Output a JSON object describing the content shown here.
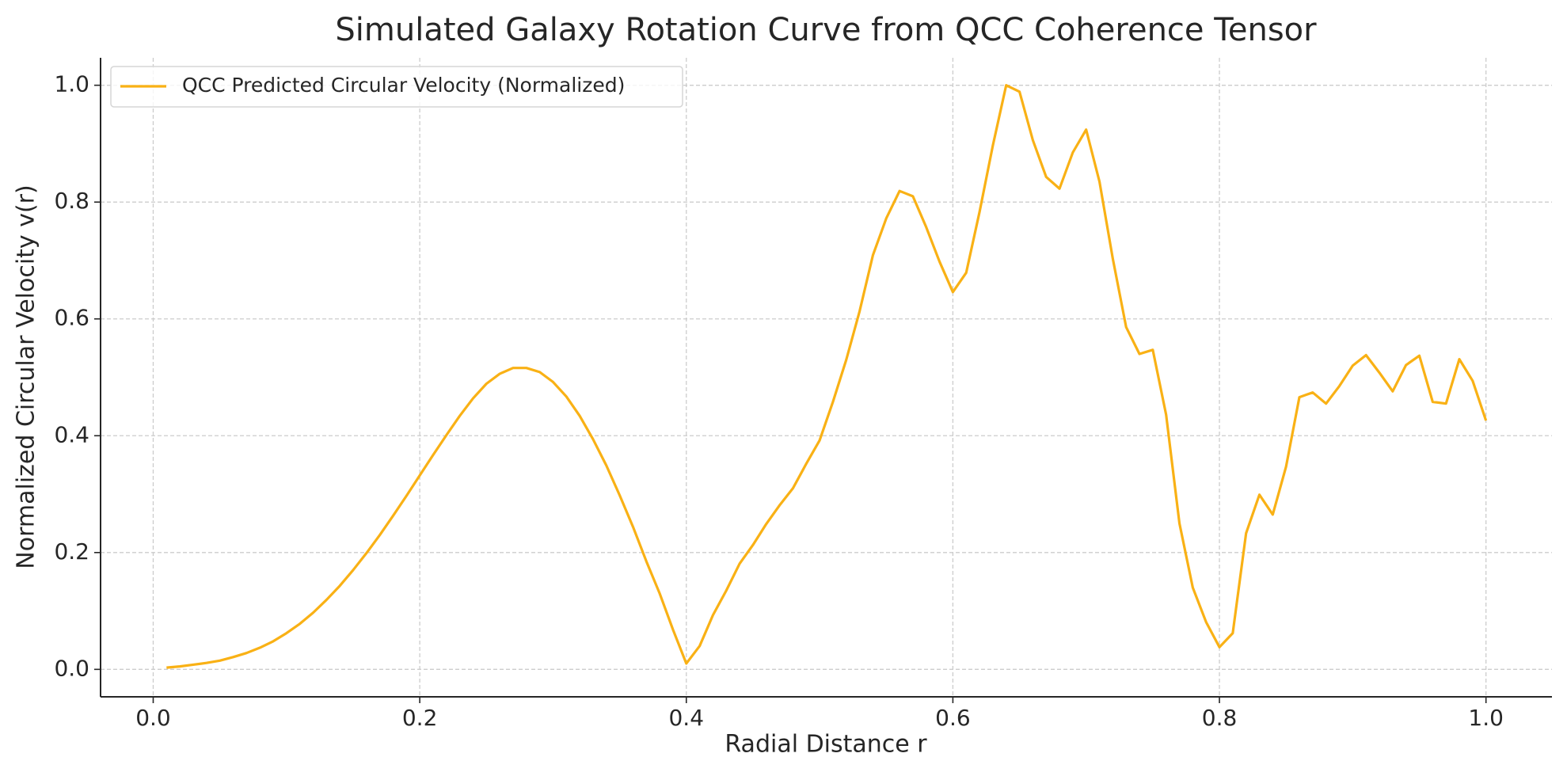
{
  "chart_data": {
    "type": "line",
    "title": "Simulated Galaxy Rotation Curve from QCC Coherence Tensor",
    "xlabel": "Radial Distance r",
    "ylabel": "Normalized Circular Velocity v(r)",
    "x": [
      0.01,
      0.02,
      0.03,
      0.04,
      0.05,
      0.06,
      0.07,
      0.08,
      0.09,
      0.1,
      0.11,
      0.12,
      0.13,
      0.14,
      0.15,
      0.16,
      0.17,
      0.18,
      0.19,
      0.2,
      0.21,
      0.22,
      0.23,
      0.24,
      0.25,
      0.26,
      0.27,
      0.28,
      0.29,
      0.3,
      0.31,
      0.32,
      0.33,
      0.34,
      0.35,
      0.36,
      0.37,
      0.38,
      0.39,
      0.4,
      0.41,
      0.42,
      0.43,
      0.44,
      0.45,
      0.46,
      0.47,
      0.48,
      0.49,
      0.5,
      0.51,
      0.52,
      0.53,
      0.54,
      0.55,
      0.56,
      0.57,
      0.58,
      0.59,
      0.6,
      0.61,
      0.62,
      0.63,
      0.64,
      0.65,
      0.66,
      0.67,
      0.68,
      0.69,
      0.7,
      0.71,
      0.72,
      0.73,
      0.74,
      0.75,
      0.76,
      0.77,
      0.78,
      0.79,
      0.8,
      0.81,
      0.82,
      0.83,
      0.84,
      0.85,
      0.86,
      0.87,
      0.88,
      0.89,
      0.9,
      0.91,
      0.92,
      0.93,
      0.94,
      0.95,
      0.96,
      0.97,
      0.98,
      0.99,
      1.0
    ],
    "series": [
      {
        "name": "QCC Predicted Circular Velocity (Normalized)",
        "color": "#f9b115",
        "values": [
          0.003,
          0.005,
          0.008,
          0.011,
          0.015,
          0.021,
          0.028,
          0.037,
          0.048,
          0.062,
          0.078,
          0.097,
          0.119,
          0.143,
          0.17,
          0.199,
          0.23,
          0.263,
          0.297,
          0.332,
          0.367,
          0.401,
          0.434,
          0.464,
          0.489,
          0.506,
          0.516,
          0.516,
          0.509,
          0.492,
          0.467,
          0.434,
          0.394,
          0.349,
          0.298,
          0.244,
          0.185,
          0.13,
          0.068,
          0.01,
          0.04,
          0.093,
          0.135,
          0.181,
          0.213,
          0.249,
          0.281,
          0.31,
          0.352,
          0.392,
          0.458,
          0.53,
          0.613,
          0.709,
          0.772,
          0.819,
          0.81,
          0.757,
          0.698,
          0.646,
          0.679,
          0.783,
          0.897,
          1.0,
          0.989,
          0.906,
          0.843,
          0.823,
          0.885,
          0.924,
          0.835,
          0.703,
          0.586,
          0.54,
          0.547,
          0.436,
          0.25,
          0.14,
          0.081,
          0.038,
          0.062,
          0.233,
          0.299,
          0.265,
          0.347,
          0.466,
          0.474,
          0.455,
          0.485,
          0.52,
          0.538,
          0.508,
          0.476,
          0.521,
          0.537,
          0.458,
          0.455,
          0.531,
          0.494,
          0.426
        ]
      }
    ],
    "xlim": [
      -0.0395,
      1.0495
    ],
    "ylim": [
      -0.047,
      1.047
    ],
    "xticks": [
      {
        "value": 0,
        "label": "0.0"
      },
      0.2,
      0.4,
      0.6,
      0.8,
      {
        "value": 1,
        "label": "1.0"
      }
    ],
    "yticks": [
      {
        "value": 0,
        "label": "0.0"
      },
      0.2,
      0.4,
      0.6,
      0.8,
      {
        "value": 1,
        "label": "1.0"
      }
    ],
    "grid": true,
    "legend": "upper left"
  }
}
